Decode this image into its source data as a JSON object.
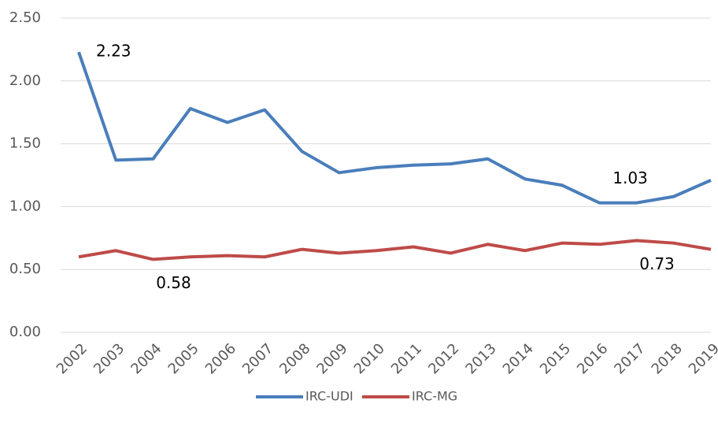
{
  "chart_data": {
    "type": "line",
    "categories": [
      "2002",
      "2003",
      "2004",
      "2005",
      "2006",
      "2007",
      "2008",
      "2009",
      "2010",
      "2011",
      "2012",
      "2013",
      "2014",
      "2015",
      "2016",
      "2017",
      "2018",
      "2019"
    ],
    "series": [
      {
        "name": "IRC-UDI",
        "color": "#4a7ebb",
        "values": [
          2.23,
          1.37,
          1.38,
          1.78,
          1.67,
          1.77,
          1.44,
          1.27,
          1.31,
          1.33,
          1.34,
          1.38,
          1.22,
          1.17,
          1.03,
          1.03,
          1.08,
          1.21
        ],
        "value_labels": [
          "2.23",
          null,
          null,
          null,
          null,
          null,
          null,
          null,
          null,
          null,
          null,
          null,
          null,
          null,
          null,
          "1.03",
          null,
          null
        ]
      },
      {
        "name": "IRC-MG",
        "color": "#be4b48",
        "values": [
          0.6,
          0.65,
          0.58,
          0.6,
          0.61,
          0.6,
          0.66,
          0.63,
          0.65,
          0.68,
          0.63,
          0.7,
          0.65,
          0.71,
          0.7,
          0.73,
          0.71,
          0.66
        ],
        "value_labels": [
          null,
          null,
          "0.58",
          null,
          null,
          null,
          null,
          null,
          null,
          null,
          null,
          null,
          null,
          null,
          null,
          "0.73",
          null,
          null
        ]
      }
    ],
    "ylim": [
      0,
      2.5
    ],
    "yticks": [
      {
        "value": 0,
        "label": "0.00"
      },
      {
        "value": 0.5,
        "label": "0.50"
      },
      {
        "value": 1,
        "label": "1.00"
      },
      {
        "value": 1.5,
        "label": "1.50"
      },
      {
        "value": 2,
        "label": "2.00"
      },
      {
        "value": 2.5,
        "label": "2.50"
      }
    ],
    "grid": true,
    "legend": "bottom"
  }
}
